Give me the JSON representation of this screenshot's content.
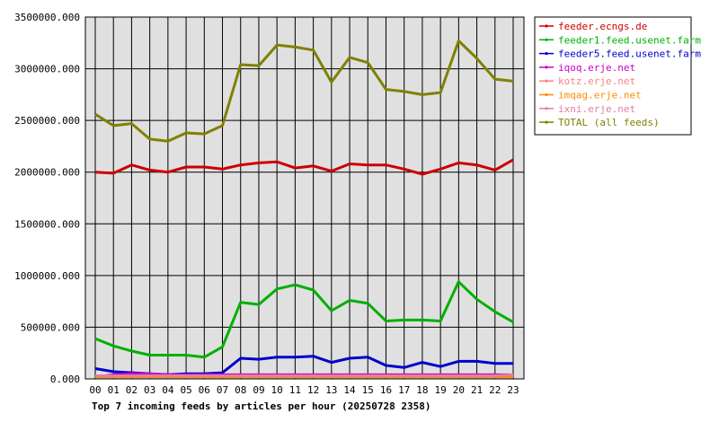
{
  "chart_data": {
    "type": "line",
    "title": "Top 7 incoming feeds by articles per hour (20250728 2358)",
    "categories": [
      "00",
      "01",
      "02",
      "03",
      "04",
      "05",
      "06",
      "07",
      "08",
      "09",
      "10",
      "11",
      "12",
      "13",
      "14",
      "15",
      "16",
      "17",
      "18",
      "19",
      "20",
      "21",
      "22",
      "23"
    ],
    "ylim": [
      0,
      3500000
    ],
    "yticks": [
      "0.000",
      "500000.000",
      "1000000.000",
      "1500000.000",
      "2000000.000",
      "2500000.000",
      "3000000.000",
      "3500000.000"
    ],
    "grid": true,
    "legend_position": "right",
    "plot_background": "#e0e0e0",
    "series": [
      {
        "name": "feeder.ecngs.de",
        "color": "#cc0000",
        "values": [
          2000000,
          1990000,
          2070000,
          2020000,
          2000000,
          2050000,
          2050000,
          2030000,
          2070000,
          2090000,
          2100000,
          2040000,
          2060000,
          2010000,
          2080000,
          2070000,
          2070000,
          2030000,
          1980000,
          2030000,
          2090000,
          2070000,
          2020000,
          2120000
        ]
      },
      {
        "name": "feeder1.feed.usenet.farm",
        "color": "#00b000",
        "values": [
          390000,
          320000,
          270000,
          230000,
          230000,
          230000,
          210000,
          310000,
          740000,
          720000,
          870000,
          910000,
          860000,
          660000,
          760000,
          730000,
          560000,
          570000,
          570000,
          560000,
          940000,
          770000,
          650000,
          550000
        ]
      },
      {
        "name": "feeder5.feed.usenet.farm",
        "color": "#0000cc",
        "values": [
          100000,
          70000,
          60000,
          50000,
          40000,
          50000,
          50000,
          60000,
          200000,
          190000,
          210000,
          210000,
          220000,
          160000,
          200000,
          210000,
          130000,
          110000,
          160000,
          120000,
          170000,
          170000,
          150000,
          150000
        ]
      },
      {
        "name": "iqoq.erje.net",
        "color": "#cc00cc",
        "values": [
          20000,
          40000,
          50000,
          50000,
          40000,
          40000,
          40000,
          40000,
          40000,
          40000,
          40000,
          40000,
          40000,
          40000,
          40000,
          40000,
          40000,
          40000,
          40000,
          40000,
          40000,
          40000,
          40000,
          40000
        ]
      },
      {
        "name": "kotz.erje.net",
        "color": "#ff8080",
        "values": [
          30000,
          30000,
          30000,
          30000,
          30000,
          30000,
          30000,
          30000,
          30000,
          30000,
          30000,
          30000,
          30000,
          30000,
          30000,
          30000,
          30000,
          30000,
          30000,
          30000,
          30000,
          30000,
          30000,
          30000
        ]
      },
      {
        "name": "imqag.erje.net",
        "color": "#ff8c00",
        "values": [
          20000,
          20000,
          20000,
          20000,
          20000,
          20000,
          20000,
          20000,
          20000,
          20000,
          20000,
          20000,
          20000,
          20000,
          20000,
          20000,
          20000,
          20000,
          20000,
          20000,
          20000,
          20000,
          20000,
          20000
        ]
      },
      {
        "name": "ixni.erje.net",
        "color": "#e080a0",
        "values": [
          30000,
          30000,
          30000,
          30000,
          30000,
          30000,
          30000,
          30000,
          30000,
          30000,
          30000,
          30000,
          30000,
          30000,
          30000,
          30000,
          30000,
          30000,
          30000,
          30000,
          30000,
          30000,
          30000,
          40000
        ]
      },
      {
        "name": "TOTAL (all feeds)",
        "color": "#808000",
        "values": [
          2560000,
          2450000,
          2470000,
          2320000,
          2300000,
          2380000,
          2370000,
          2450000,
          3040000,
          3030000,
          3230000,
          3210000,
          3180000,
          2870000,
          3110000,
          3060000,
          2800000,
          2780000,
          2750000,
          2770000,
          3270000,
          3100000,
          2900000,
          2880000
        ]
      }
    ]
  }
}
